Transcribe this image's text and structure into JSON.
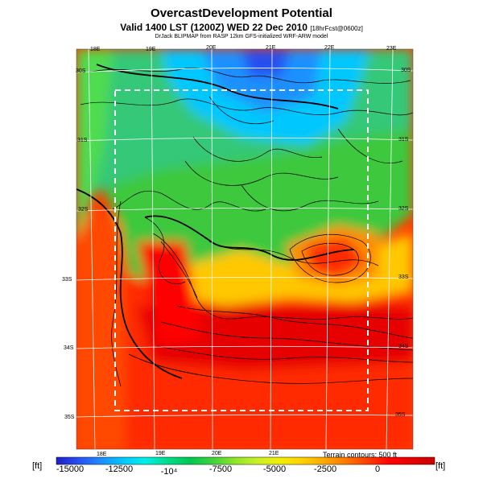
{
  "header": {
    "title": "OvercastDevelopment Potential",
    "subtitle": "Valid 1400 LST (1200Z) WED 22 Dec 2010",
    "forecast_tag": "[18hrFcst@0600z]",
    "credit": "DrJack BLIPMAP from RASP 12km GFS-initialized WRF-ARW model"
  },
  "map": {
    "top_lon_labels": [
      "18E",
      "19E",
      "20E",
      "21E",
      "22E",
      "23E"
    ],
    "bottom_lon_labels": [
      "18E",
      "19E",
      "20E",
      "21E"
    ],
    "left_lat_labels": [
      "30S",
      "31S",
      "32S",
      "33S",
      "34S",
      "35S"
    ],
    "right_lat_labels": [
      "30S",
      "31S",
      "32S",
      "33S",
      "34S",
      "35S"
    ],
    "terrain_note": "Terrain contours: 500 ft"
  },
  "colorbar": {
    "unit": "[ft]",
    "labels": [
      "-15000",
      "-12500",
      "-10⁴",
      "-7500",
      "-5000",
      "-2500",
      "0"
    ],
    "stops": [
      "#1e1ec8",
      "#2850f0",
      "#1e8cff",
      "#00c8ff",
      "#00f0e6",
      "#00dc8c",
      "#00c850",
      "#3cd23c",
      "#8ce628",
      "#c8f028",
      "#f0f000",
      "#ffd200",
      "#ffaa00",
      "#ff7800",
      "#ff3c00",
      "#ff0000",
      "#e60000",
      "#c80000"
    ]
  }
}
